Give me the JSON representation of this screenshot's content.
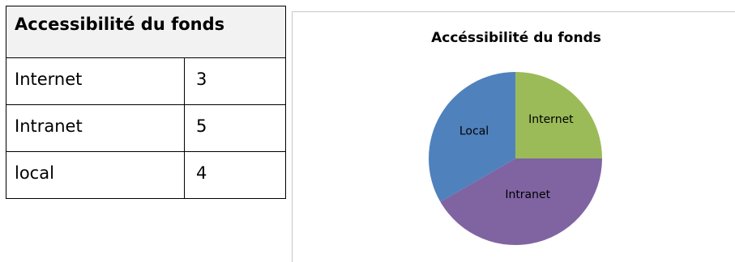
{
  "table": {
    "title": "Accessibilité du fonds",
    "rows": [
      {
        "label": "Internet",
        "value": "3"
      },
      {
        "label": "Intranet",
        "value": "5"
      },
      {
        "label": "local",
        "value": "4"
      }
    ]
  },
  "chart_data": {
    "type": "pie",
    "title": "Accéssibilité du fonds",
    "slices": [
      {
        "label": "Internet",
        "value": 3,
        "color": "#9bbb59"
      },
      {
        "label": "Intranet",
        "value": 5,
        "color": "#8064a2"
      },
      {
        "label": "Local",
        "value": 4,
        "color": "#4f81bd"
      }
    ],
    "legend": "none",
    "start_angle": "12 o'clock",
    "direction": "clockwise"
  }
}
